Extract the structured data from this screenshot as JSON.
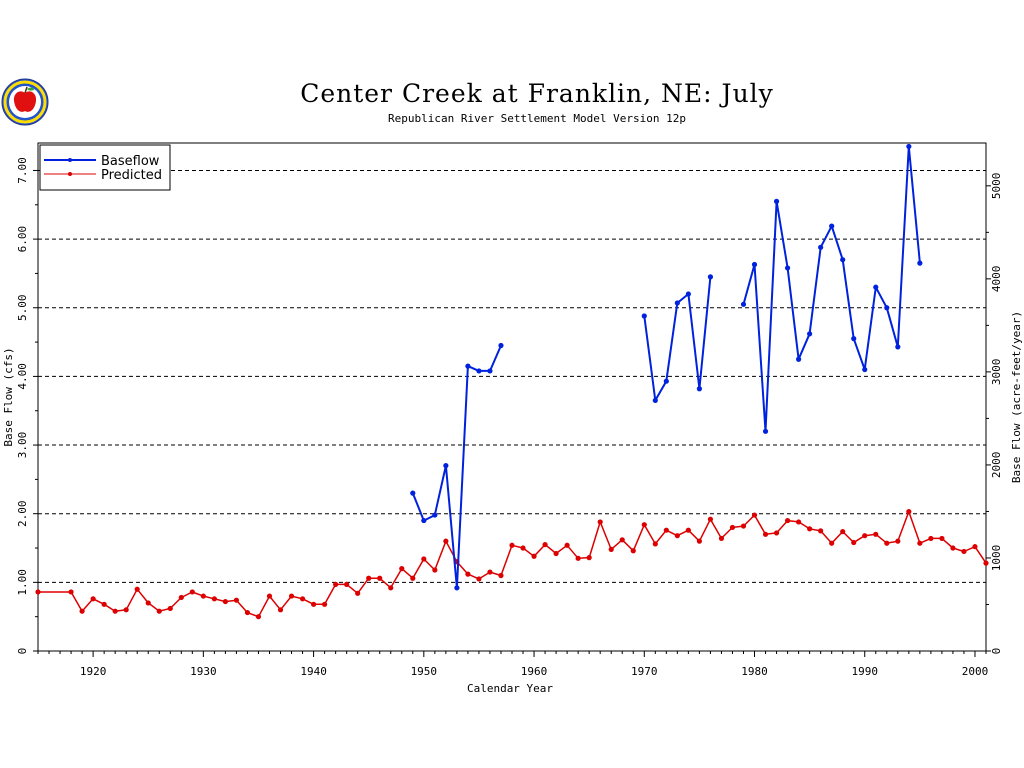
{
  "chart_data": {
    "type": "line",
    "title": "Center Creek at Franklin, NE: July",
    "subtitle": "Republican River Settlement Model Version 12p",
    "xlabel": "Calendar Year",
    "ylabel": "Base Flow (cfs)",
    "ylabel_right": "Base Flow (acre-feet/year)",
    "xlim": [
      1915,
      2001
    ],
    "ylim": [
      0,
      7.4
    ],
    "x_ticks": [
      "1920",
      "1930",
      "1940",
      "1950",
      "1960",
      "1970",
      "1980",
      "1990",
      "2000"
    ],
    "y_ticks": [
      "0",
      "1.00",
      "2.00",
      "3.00",
      "4.00",
      "5.00",
      "6.00",
      "7.00"
    ],
    "y_right_ticks": [
      "0",
      "1000",
      "2000",
      "3000",
      "4000",
      "5000"
    ],
    "grid": "horizontal dashed",
    "legend_position": "top-left",
    "series": [
      {
        "name": "Baseflow",
        "color": "#0022dd",
        "segments": [
          [
            [
              1949,
              2.3
            ],
            [
              1950,
              1.9
            ],
            [
              1951,
              1.98
            ],
            [
              1952,
              2.7
            ],
            [
              1953,
              0.92
            ],
            [
              1954,
              4.15
            ],
            [
              1955,
              4.08
            ],
            [
              1956,
              4.08
            ],
            [
              1957,
              4.45
            ]
          ],
          [
            [
              1970,
              4.88
            ],
            [
              1971,
              3.65
            ],
            [
              1972,
              3.93
            ],
            [
              1973,
              5.07
            ],
            [
              1974,
              5.2
            ],
            [
              1975,
              3.82
            ],
            [
              1976,
              5.45
            ]
          ],
          [
            [
              1979,
              5.05
            ],
            [
              1980,
              5.63
            ],
            [
              1981,
              3.2
            ],
            [
              1982,
              6.55
            ],
            [
              1983,
              5.58
            ],
            [
              1984,
              4.25
            ],
            [
              1985,
              4.62
            ],
            [
              1986,
              5.88
            ],
            [
              1987,
              6.19
            ],
            [
              1988,
              5.7
            ],
            [
              1989,
              4.55
            ],
            [
              1990,
              4.1
            ],
            [
              1991,
              5.3
            ],
            [
              1992,
              5.0
            ],
            [
              1993,
              4.43
            ],
            [
              1994,
              7.35
            ],
            [
              1995,
              5.65
            ]
          ]
        ]
      },
      {
        "name": "Predicted",
        "color": "#dd0000",
        "segments": [
          [
            [
              1915,
              0.86
            ],
            [
              1918,
              0.86
            ],
            [
              1919,
              0.58
            ],
            [
              1920,
              0.76
            ],
            [
              1921,
              0.68
            ],
            [
              1922,
              0.58
            ],
            [
              1923,
              0.6
            ],
            [
              1924,
              0.9
            ],
            [
              1925,
              0.7
            ],
            [
              1926,
              0.58
            ],
            [
              1927,
              0.62
            ],
            [
              1928,
              0.78
            ],
            [
              1929,
              0.86
            ],
            [
              1930,
              0.8
            ],
            [
              1931,
              0.76
            ],
            [
              1932,
              0.72
            ],
            [
              1933,
              0.74
            ],
            [
              1934,
              0.56
            ],
            [
              1935,
              0.5
            ],
            [
              1936,
              0.8
            ],
            [
              1937,
              0.6
            ],
            [
              1938,
              0.8
            ],
            [
              1939,
              0.76
            ],
            [
              1940,
              0.68
            ],
            [
              1941,
              0.68
            ],
            [
              1942,
              0.97
            ],
            [
              1943,
              0.97
            ],
            [
              1944,
              0.84
            ],
            [
              1945,
              1.06
            ],
            [
              1946,
              1.06
            ],
            [
              1947,
              0.92
            ],
            [
              1948,
              1.2
            ],
            [
              1949,
              1.06
            ],
            [
              1950,
              1.34
            ],
            [
              1951,
              1.18
            ],
            [
              1952,
              1.6
            ],
            [
              1953,
              1.3
            ],
            [
              1954,
              1.12
            ],
            [
              1955,
              1.05
            ],
            [
              1956,
              1.15
            ],
            [
              1957,
              1.1
            ],
            [
              1958,
              1.54
            ],
            [
              1959,
              1.5
            ],
            [
              1960,
              1.38
            ],
            [
              1961,
              1.55
            ],
            [
              1962,
              1.42
            ],
            [
              1963,
              1.54
            ],
            [
              1964,
              1.35
            ],
            [
              1965,
              1.36
            ],
            [
              1966,
              1.88
            ],
            [
              1967,
              1.48
            ],
            [
              1968,
              1.62
            ],
            [
              1969,
              1.46
            ],
            [
              1970,
              1.84
            ],
            [
              1971,
              1.56
            ],
            [
              1972,
              1.76
            ],
            [
              1973,
              1.68
            ],
            [
              1974,
              1.76
            ],
            [
              1975,
              1.6
            ],
            [
              1976,
              1.92
            ],
            [
              1977,
              1.64
            ],
            [
              1978,
              1.8
            ],
            [
              1979,
              1.82
            ],
            [
              1980,
              1.98
            ],
            [
              1981,
              1.7
            ],
            [
              1982,
              1.72
            ],
            [
              1983,
              1.9
            ],
            [
              1984,
              1.88
            ],
            [
              1985,
              1.78
            ],
            [
              1986,
              1.75
            ],
            [
              1987,
              1.57
            ],
            [
              1988,
              1.74
            ],
            [
              1989,
              1.58
            ],
            [
              1990,
              1.68
            ],
            [
              1991,
              1.7
            ],
            [
              1992,
              1.57
            ],
            [
              1993,
              1.6
            ],
            [
              1994,
              2.03
            ],
            [
              1995,
              1.57
            ],
            [
              1996,
              1.64
            ],
            [
              1997,
              1.64
            ],
            [
              1998,
              1.5
            ],
            [
              1999,
              1.45
            ],
            [
              2000,
              1.52
            ],
            [
              2001,
              1.28
            ]
          ]
        ]
      }
    ]
  }
}
